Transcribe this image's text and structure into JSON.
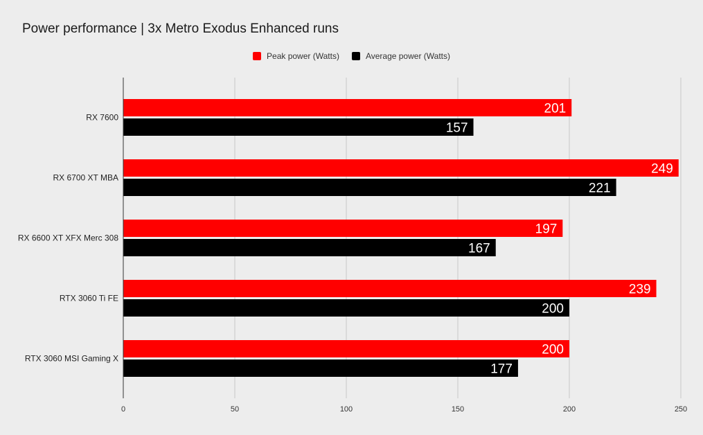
{
  "chart_data": {
    "type": "bar",
    "orientation": "horizontal",
    "title": "Power performance | 3x Metro Exodus Enhanced runs",
    "categories": [
      "RX 7600",
      "RX 6700 XT MBA",
      "RX 6600 XT XFX Merc 308",
      "RTX 3060 Ti FE",
      "RTX 3060 MSI Gaming X"
    ],
    "series": [
      {
        "name": "Peak power (Watts)",
        "color": "#ff0000",
        "values": [
          201,
          249,
          197,
          239,
          200
        ]
      },
      {
        "name": "Average power (Watts)",
        "color": "#000000",
        "values": [
          157,
          221,
          167,
          200,
          177
        ]
      }
    ],
    "xlim": [
      0,
      250
    ],
    "xticks": [
      0,
      50,
      100,
      150,
      200,
      250
    ],
    "grid": true,
    "legend_position": "top-center",
    "data_labels": true
  }
}
